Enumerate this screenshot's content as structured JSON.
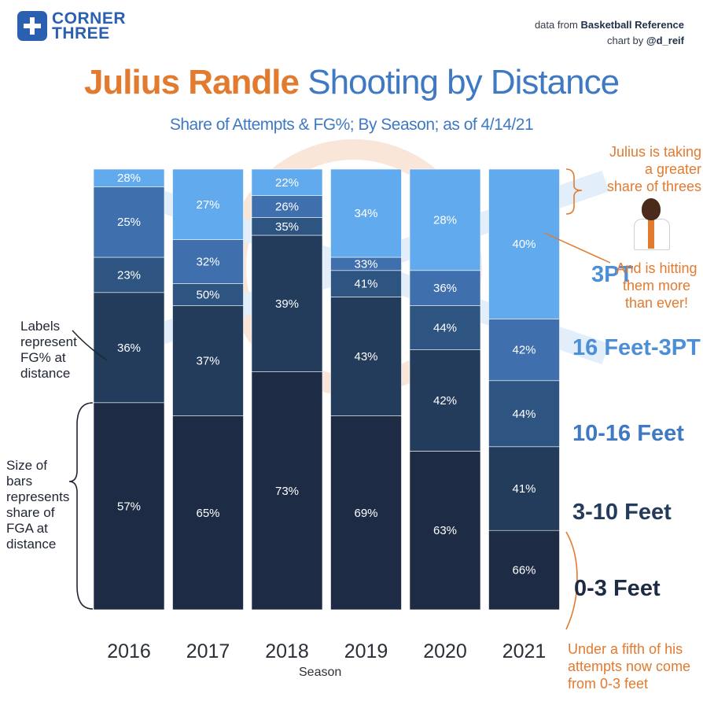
{
  "brand": {
    "line1": "CORNER",
    "line2": "THREE"
  },
  "credits": {
    "source_prefix": "data from",
    "source": "Basketball Reference",
    "chart_prefix": "chart by",
    "author": "@d_reif"
  },
  "title": {
    "name": "Julius Randle",
    "rest": " Shooting by Distance"
  },
  "subtitle": "Share of Attempts & FG%; By Season; as of 4/14/21",
  "xlabel": "Season",
  "colors": {
    "0-3 Feet": "#1d2b45",
    "3-10 Feet": "#233c5c",
    "10-16 Feet": "#2e5481",
    "16 Feet-3PT": "#3f70ad",
    "3PT": "#62aaee",
    "accent": "#e27a2f",
    "category_text": "#1d2b45",
    "category_text_light": "#4d8fd6"
  },
  "categories_display": [
    "3PT",
    "16 Feet-3PT",
    "10-16 Feet",
    "3-10 Feet",
    "0-3 Feet"
  ],
  "notes": {
    "labels_note": [
      "Labels",
      "represent",
      "FG% at",
      "distance"
    ],
    "size_note": [
      "Size of",
      "bars",
      "represents",
      "share of",
      "FGA at",
      "distance"
    ],
    "threes_note": [
      "Julius is taking",
      "a greater",
      "share of threes"
    ],
    "hitting_note": [
      "And is hitting",
      "them more",
      "than ever!"
    ],
    "fifth_note": [
      "Under a fifth of his",
      "attempts now come",
      "from 0-3 feet"
    ]
  },
  "chart_data": {
    "type": "bar",
    "stacked": true,
    "normalized": true,
    "x": [
      "2016",
      "2017",
      "2018",
      "2019",
      "2020",
      "2021"
    ],
    "share_unit": "fraction of FGA",
    "series": [
      {
        "name": "0-3 Feet",
        "share": [
          0.47,
          0.44,
          0.54,
          0.44,
          0.36,
          0.18
        ],
        "fg_labels": [
          "57%",
          "65%",
          "73%",
          "69%",
          "63%",
          "66%"
        ]
      },
      {
        "name": "3-10 Feet",
        "share": [
          0.25,
          0.25,
          0.31,
          0.27,
          0.23,
          0.19
        ],
        "fg_labels": [
          "36%",
          "37%",
          "39%",
          "43%",
          "42%",
          "41%"
        ]
      },
      {
        "name": "10-16 Feet",
        "share": [
          0.08,
          0.05,
          0.04,
          0.06,
          0.1,
          0.15
        ],
        "fg_labels": [
          "23%",
          "50%",
          "35%",
          "41%",
          "44%",
          "44%"
        ]
      },
      {
        "name": "16 Feet-3PT",
        "share": [
          0.16,
          0.1,
          0.05,
          0.03,
          0.08,
          0.14
        ],
        "fg_labels": [
          "25%",
          "32%",
          "26%",
          "33%",
          "36%",
          "42%"
        ]
      },
      {
        "name": "3PT",
        "share": [
          0.04,
          0.16,
          0.06,
          0.2,
          0.23,
          0.34
        ],
        "fg_labels": [
          "28%",
          "27%",
          "22%",
          "34%",
          "28%",
          "40%"
        ]
      }
    ],
    "ylim": [
      0,
      1
    ],
    "grid": false,
    "legend": "right (direct labels)"
  }
}
